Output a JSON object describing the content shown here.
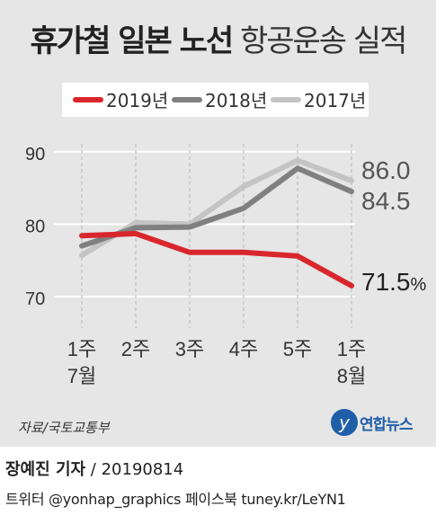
{
  "title": {
    "bold": "휴가철 일본 노선",
    "normal": "항공운송 실적"
  },
  "colors": {
    "s2019": "#d9262c",
    "s2018": "#808080",
    "s2017": "#c4c4c4",
    "grid": "#ffffff",
    "axis_text": "#333333"
  },
  "chart_data": {
    "type": "line",
    "categories": [
      "1주\n7월",
      "2주",
      "3주",
      "4주",
      "5주",
      "1주\n8월"
    ],
    "series": [
      {
        "name": "2019년",
        "values": [
          78.4,
          78.7,
          76.1,
          76.1,
          75.6,
          71.5
        ],
        "end_label": "71.5",
        "end_suffix": "%"
      },
      {
        "name": "2018년",
        "values": [
          77.0,
          79.5,
          79.6,
          82.2,
          87.7,
          84.5
        ],
        "end_label": "84.5",
        "end_suffix": ""
      },
      {
        "name": "2017년",
        "values": [
          75.7,
          80.2,
          80.0,
          85.2,
          88.8,
          86.0
        ],
        "end_label": "86.0",
        "end_suffix": ""
      }
    ],
    "yticks": [
      70,
      80,
      90
    ],
    "ylim": [
      68,
      91
    ],
    "grid": true,
    "legend_position": "top"
  },
  "source": "자료/국토교통부",
  "logo_text": "연합뉴스",
  "byline": {
    "name": "장예진 기자",
    "date": " / 20190814"
  },
  "social": "트위터 @yonhap_graphics  페이스북 tuney.kr/LeYN1"
}
